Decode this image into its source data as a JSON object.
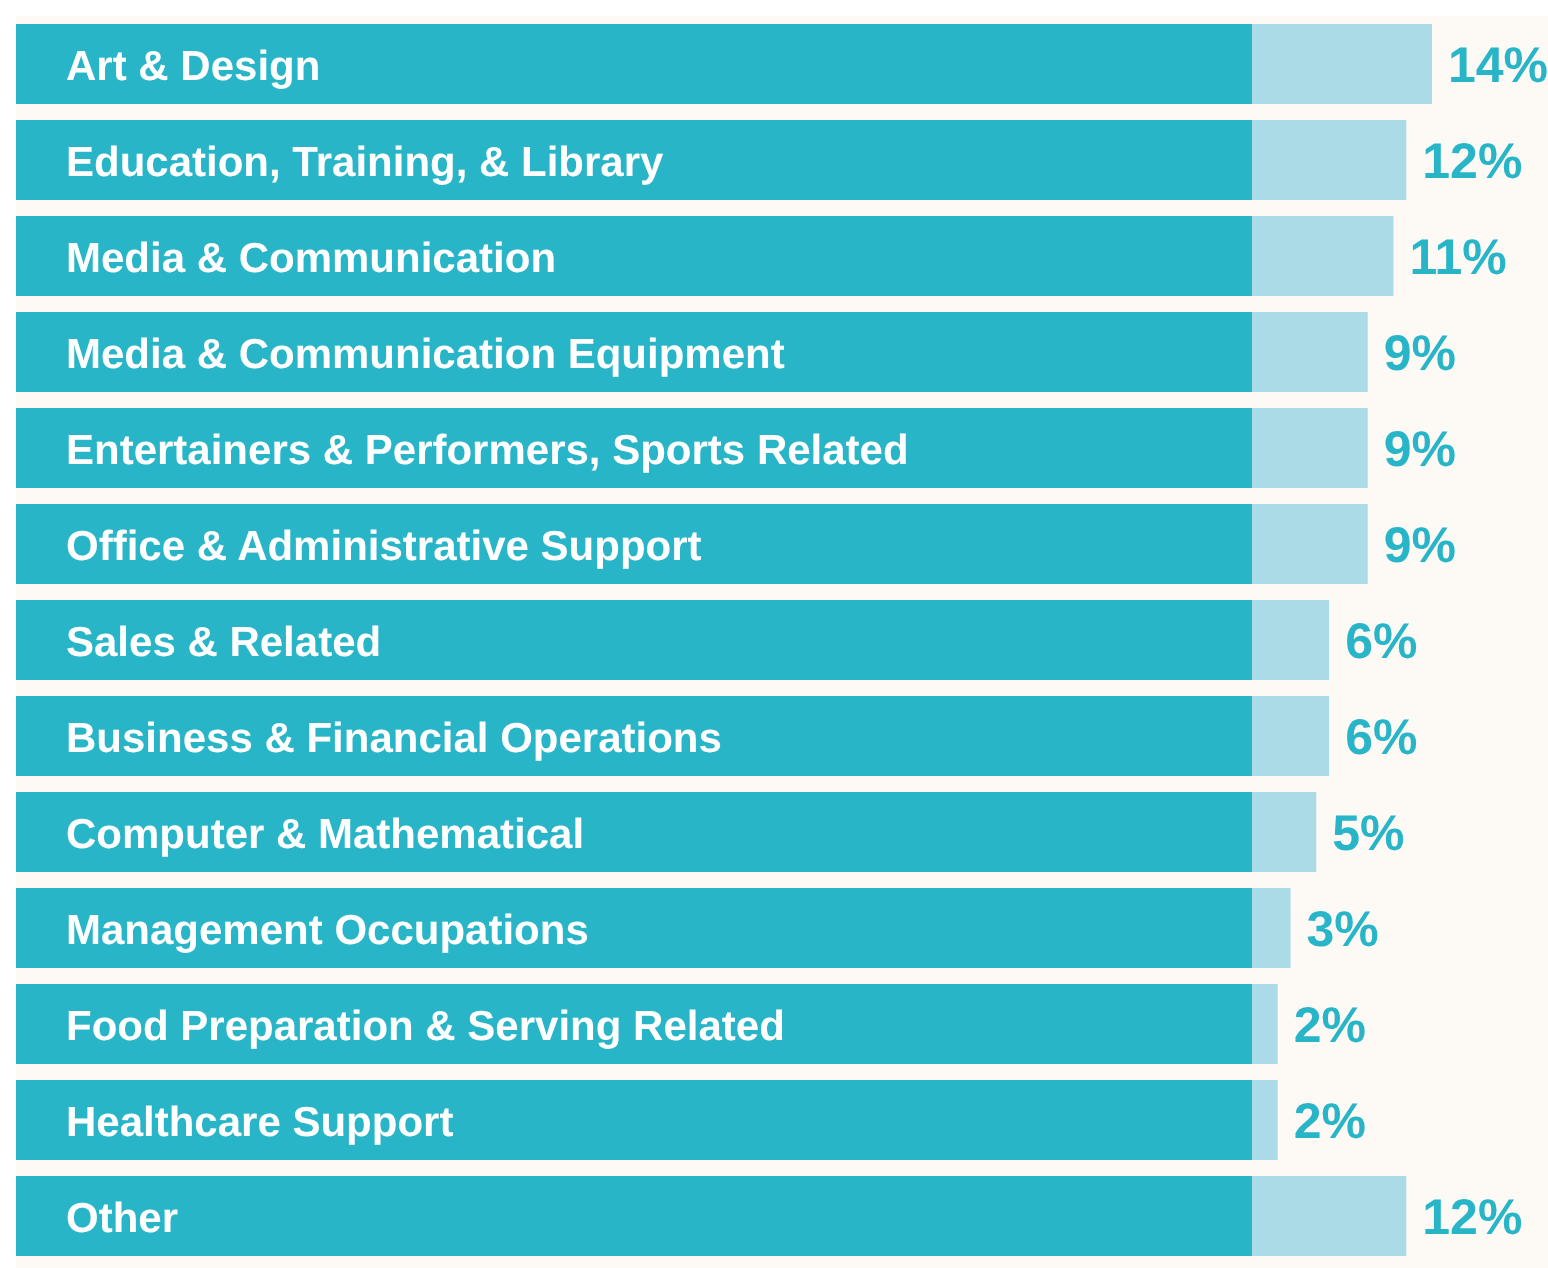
{
  "chart_data": {
    "type": "bar",
    "orientation": "horizontal",
    "categories": [
      "Art & Design",
      "Education, Training, & Library",
      "Media & Communication",
      "Media & Communication Equipment",
      "Entertainers & Performers, Sports Related",
      "Office & Administrative Support",
      "Sales & Related",
      "Business & Financial Operations",
      "Computer & Mathematical",
      "Management Occupations",
      "Food Preparation & Serving Related",
      "Healthcare Support",
      "Other"
    ],
    "values": [
      14,
      12,
      11,
      9,
      9,
      9,
      6,
      6,
      5,
      3,
      2,
      2,
      12
    ],
    "value_labels": [
      "14%",
      "12%",
      "11%",
      "9%",
      "9%",
      "9%",
      "6%",
      "6%",
      "5%",
      "3%",
      "2%",
      "2%",
      "12%"
    ],
    "color": "#aadbe6",
    "tick_labels": "y"
  }
}
